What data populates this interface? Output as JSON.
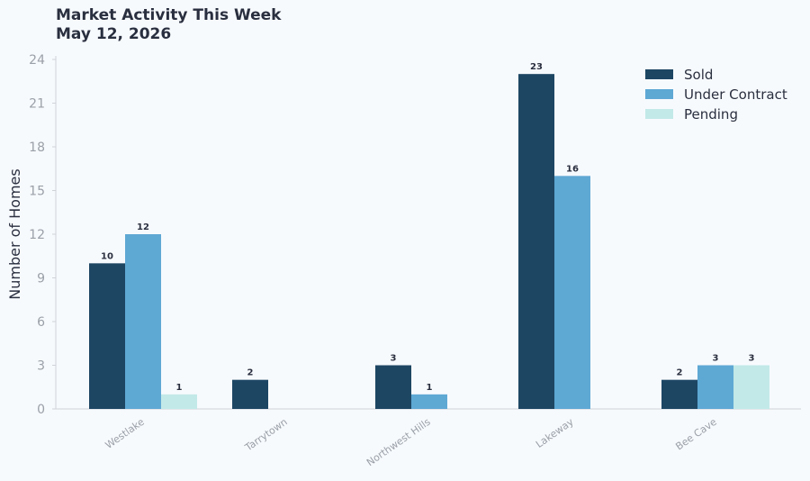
{
  "chart_data": {
    "type": "bar",
    "title": "Market Activity This Week",
    "subtitle": "May 12, 2026",
    "xlabel": "",
    "ylabel": "Number of Homes",
    "ylim": [
      0,
      24
    ],
    "yticks": [
      0,
      3,
      6,
      9,
      12,
      15,
      18,
      21,
      24
    ],
    "grid": false,
    "legend_position": "top-right",
    "categories": [
      "Westlake",
      "Tarrytown",
      "Northwest Hills",
      "Lakeway",
      "Bee Cave"
    ],
    "series": [
      {
        "name": "Sold",
        "color": "#1d4663",
        "values": [
          10,
          2,
          3,
          23,
          2
        ]
      },
      {
        "name": "Under Contract",
        "color": "#5ea8d4",
        "values": [
          12,
          0,
          1,
          16,
          3
        ]
      },
      {
        "name": "Pending",
        "color": "#c2e9e8",
        "values": [
          1,
          0,
          0,
          0,
          3
        ]
      }
    ]
  }
}
